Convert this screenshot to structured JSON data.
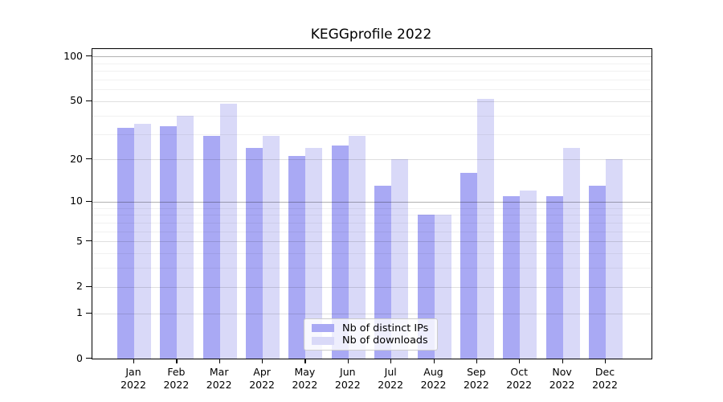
{
  "chart_data": {
    "type": "bar",
    "title": "KEGGprofile 2022",
    "scale": "log1p",
    "grid": true,
    "legend_position": "bottom-center",
    "categories": [
      "Jan",
      "Feb",
      "Mar",
      "Apr",
      "May",
      "Jun",
      "Jul",
      "Aug",
      "Sep",
      "Oct",
      "Nov",
      "Dec"
    ],
    "category_year": "2022",
    "series": [
      {
        "name": "Nb of distinct IPs",
        "color": "#a9a9f4",
        "values": [
          33,
          34,
          29,
          24,
          21,
          25,
          13,
          8,
          16,
          11,
          11,
          13
        ]
      },
      {
        "name": "Nb of downloads",
        "color": "#d9d9f8",
        "values": [
          35,
          40,
          48,
          29,
          24,
          29,
          20,
          8,
          52,
          12,
          24,
          20
        ]
      }
    ],
    "y_ticks": [
      100,
      50,
      20,
      10,
      5,
      2,
      1,
      0
    ],
    "y_decade_ticks": [
      100,
      10
    ],
    "y_minor_ticks": [
      90,
      80,
      70,
      60,
      40,
      30,
      9,
      8,
      7,
      6,
      4,
      3
    ],
    "ylim": [
      0,
      110
    ]
  }
}
